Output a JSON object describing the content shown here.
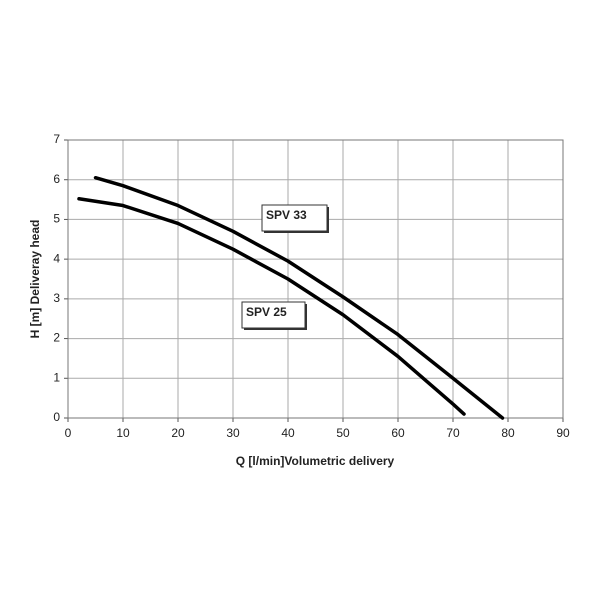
{
  "chart_data": {
    "type": "line",
    "x_label": "Q [l/min]Volumetric delivery",
    "y_label": "H [m] Deliveray head",
    "xlim": [
      0,
      90
    ],
    "xticks": [
      0,
      10,
      20,
      30,
      40,
      50,
      60,
      70,
      80,
      90
    ],
    "ylim": [
      0,
      7
    ],
    "yticks": [
      0,
      1,
      2,
      3,
      4,
      5,
      6,
      7
    ],
    "grid": true,
    "series": [
      {
        "name": "SPV 33",
        "color": "#000000",
        "x": [
          5,
          10,
          20,
          30,
          40,
          50,
          60,
          70,
          79
        ],
        "values": [
          6.05,
          5.85,
          5.35,
          4.7,
          3.95,
          3.05,
          2.1,
          1.0,
          0
        ]
      },
      {
        "name": "SPV 25",
        "color": "#000000",
        "x": [
          2,
          10,
          20,
          30,
          40,
          50,
          60,
          70,
          72
        ],
        "values": [
          5.52,
          5.35,
          4.9,
          4.25,
          3.5,
          2.6,
          1.55,
          0.35,
          0.1
        ]
      }
    ]
  }
}
